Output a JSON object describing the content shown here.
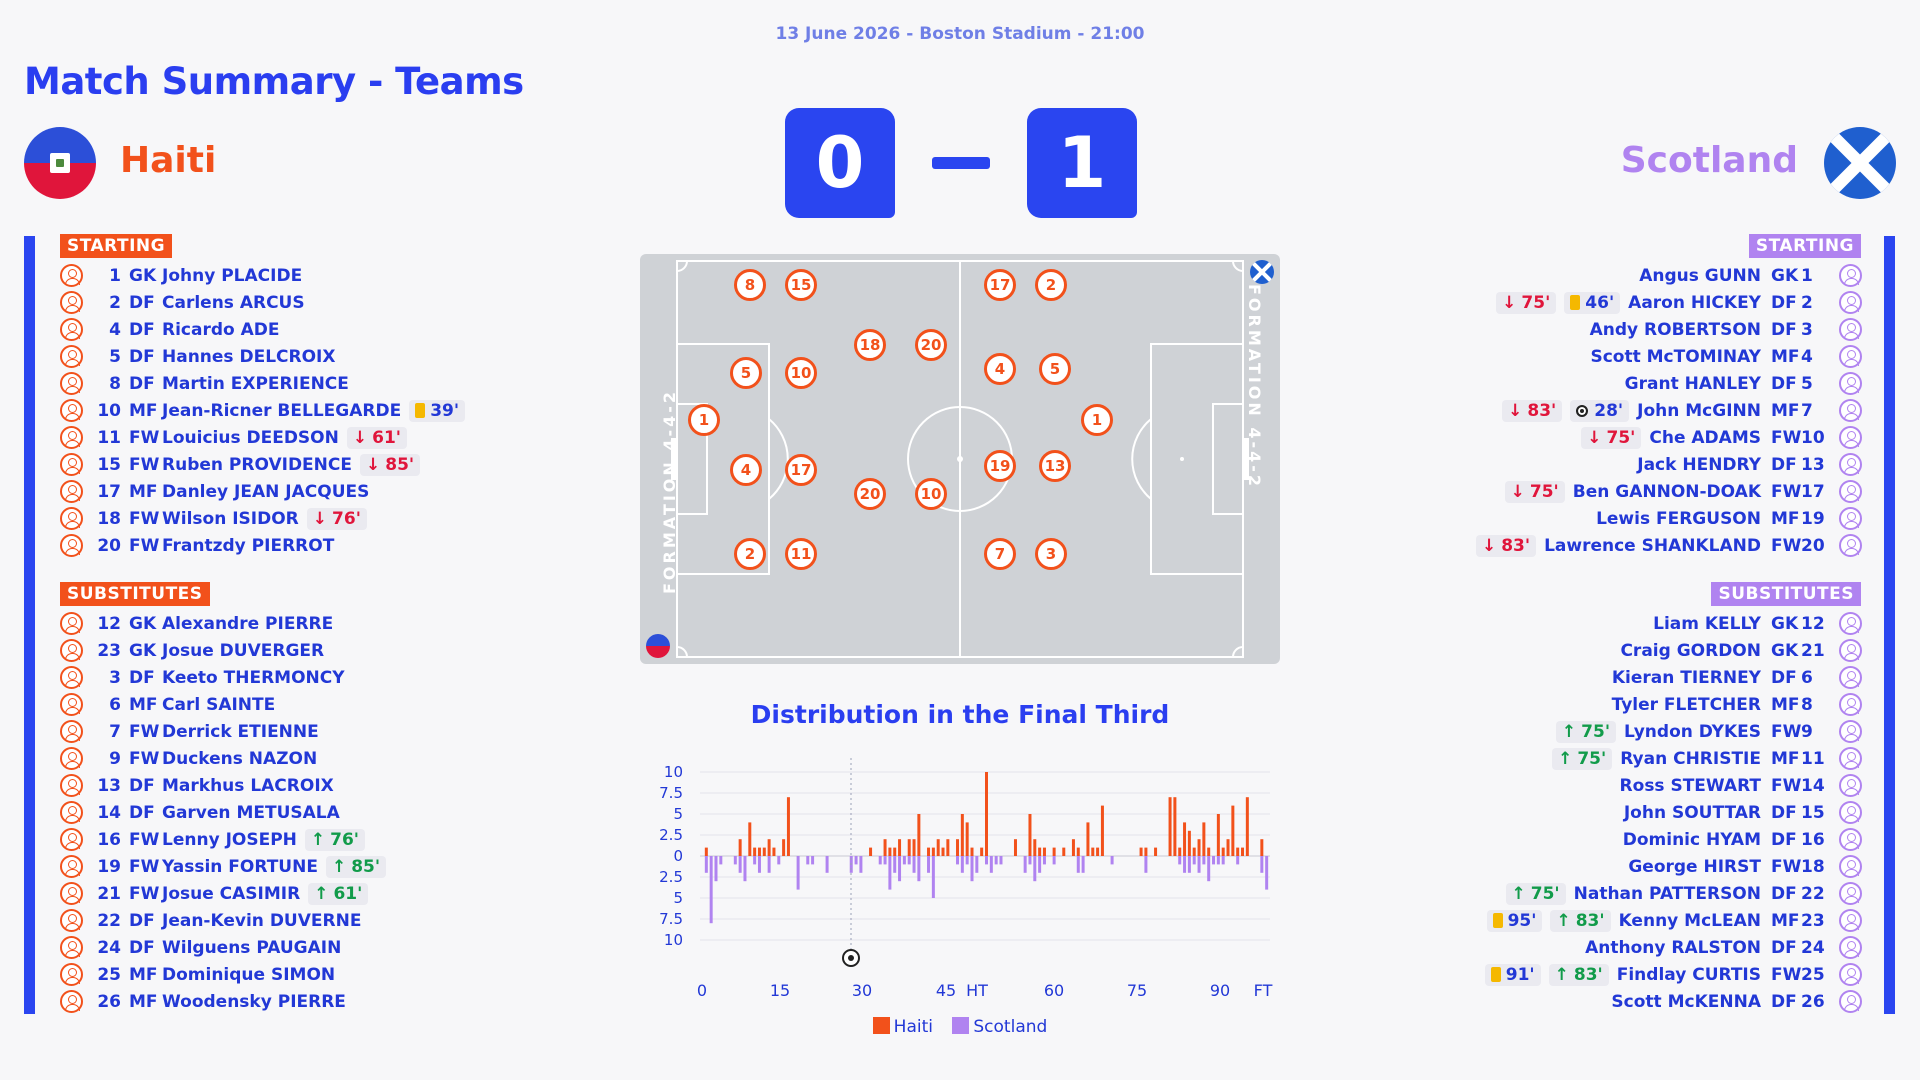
{
  "match_info": "13 June 2026 - Boston Stadium - 21:00",
  "title": "Match Summary - Teams",
  "home": {
    "name": "Haiti",
    "score": "0",
    "color": "#f2511b",
    "starting_label": "STARTING",
    "subs_label": "SUBSTITUTES",
    "formation": "FORMATION 4-4-2",
    "starting": [
      {
        "num": "1",
        "pos": "GK",
        "name": "Johny PLACIDE",
        "events": []
      },
      {
        "num": "2",
        "pos": "DF",
        "name": "Carlens ARCUS",
        "events": []
      },
      {
        "num": "4",
        "pos": "DF",
        "name": "Ricardo ADE",
        "events": []
      },
      {
        "num": "5",
        "pos": "DF",
        "name": "Hannes DELCROIX",
        "events": []
      },
      {
        "num": "8",
        "pos": "DF",
        "name": "Martin EXPERIENCE",
        "events": []
      },
      {
        "num": "10",
        "pos": "MF",
        "name": "Jean-Ricner BELLEGARDE",
        "events": [
          {
            "type": "card",
            "min": "39'"
          }
        ]
      },
      {
        "num": "11",
        "pos": "FW",
        "name": "Louicius DEEDSON",
        "events": [
          {
            "type": "off",
            "min": "61'"
          }
        ]
      },
      {
        "num": "15",
        "pos": "FW",
        "name": "Ruben PROVIDENCE",
        "events": [
          {
            "type": "off",
            "min": "85'"
          }
        ]
      },
      {
        "num": "17",
        "pos": "MF",
        "name": "Danley JEAN JACQUES",
        "events": []
      },
      {
        "num": "18",
        "pos": "FW",
        "name": "Wilson ISIDOR",
        "events": [
          {
            "type": "off",
            "min": "76'"
          }
        ]
      },
      {
        "num": "20",
        "pos": "FW",
        "name": "Frantzdy PIERROT",
        "events": []
      }
    ],
    "subs": [
      {
        "num": "12",
        "pos": "GK",
        "name": "Alexandre PIERRE",
        "events": []
      },
      {
        "num": "23",
        "pos": "GK",
        "name": "Josue DUVERGER",
        "events": []
      },
      {
        "num": "3",
        "pos": "DF",
        "name": "Keeto THERMONCY",
        "events": []
      },
      {
        "num": "6",
        "pos": "MF",
        "name": "Carl SAINTE",
        "events": []
      },
      {
        "num": "7",
        "pos": "FW",
        "name": "Derrick ETIENNE",
        "events": []
      },
      {
        "num": "9",
        "pos": "FW",
        "name": "Duckens NAZON",
        "events": []
      },
      {
        "num": "13",
        "pos": "DF",
        "name": "Markhus LACROIX",
        "events": []
      },
      {
        "num": "14",
        "pos": "DF",
        "name": "Garven METUSALA",
        "events": []
      },
      {
        "num": "16",
        "pos": "FW",
        "name": "Lenny JOSEPH",
        "events": [
          {
            "type": "on",
            "min": "76'"
          }
        ]
      },
      {
        "num": "19",
        "pos": "FW",
        "name": "Yassin FORTUNE",
        "events": [
          {
            "type": "on",
            "min": "85'"
          }
        ]
      },
      {
        "num": "21",
        "pos": "FW",
        "name": "Josue CASIMIR",
        "events": [
          {
            "type": "on",
            "min": "61'"
          }
        ]
      },
      {
        "num": "22",
        "pos": "DF",
        "name": "Jean-Kevin DUVERNE",
        "events": []
      },
      {
        "num": "24",
        "pos": "DF",
        "name": "Wilguens PAUGAIN",
        "events": []
      },
      {
        "num": "25",
        "pos": "MF",
        "name": "Dominique SIMON",
        "events": []
      },
      {
        "num": "26",
        "pos": "MF",
        "name": "Woodensky PIERRE",
        "events": []
      }
    ]
  },
  "away": {
    "name": "Scotland",
    "score": "1",
    "color": "#b083f0",
    "starting_label": "STARTING",
    "subs_label": "SUBSTITUTES",
    "formation": "FORMATION 4-4-2",
    "starting": [
      {
        "num": "1",
        "pos": "GK",
        "name": "Angus GUNN",
        "events": []
      },
      {
        "num": "2",
        "pos": "DF",
        "name": "Aaron HICKEY",
        "events": [
          {
            "type": "off",
            "min": "75'"
          },
          {
            "type": "card",
            "min": "46'"
          }
        ]
      },
      {
        "num": "3",
        "pos": "DF",
        "name": "Andy ROBERTSON",
        "events": []
      },
      {
        "num": "4",
        "pos": "MF",
        "name": "Scott McTOMINAY",
        "events": []
      },
      {
        "num": "5",
        "pos": "DF",
        "name": "Grant HANLEY",
        "events": []
      },
      {
        "num": "7",
        "pos": "MF",
        "name": "John McGINN",
        "events": [
          {
            "type": "off",
            "min": "83'"
          },
          {
            "type": "goal",
            "min": "28'"
          }
        ]
      },
      {
        "num": "10",
        "pos": "FW",
        "name": "Che ADAMS",
        "events": [
          {
            "type": "off",
            "min": "75'"
          }
        ]
      },
      {
        "num": "13",
        "pos": "DF",
        "name": "Jack HENDRY",
        "events": []
      },
      {
        "num": "17",
        "pos": "FW",
        "name": "Ben GANNON-DOAK",
        "events": [
          {
            "type": "off",
            "min": "75'"
          }
        ]
      },
      {
        "num": "19",
        "pos": "MF",
        "name": "Lewis FERGUSON",
        "events": []
      },
      {
        "num": "20",
        "pos": "FW",
        "name": "Lawrence SHANKLAND",
        "events": [
          {
            "type": "off",
            "min": "83'"
          }
        ]
      }
    ],
    "subs": [
      {
        "num": "12",
        "pos": "GK",
        "name": "Liam KELLY",
        "events": []
      },
      {
        "num": "21",
        "pos": "GK",
        "name": "Craig GORDON",
        "events": []
      },
      {
        "num": "6",
        "pos": "DF",
        "name": "Kieran TIERNEY",
        "events": []
      },
      {
        "num": "8",
        "pos": "MF",
        "name": "Tyler FLETCHER",
        "events": []
      },
      {
        "num": "9",
        "pos": "FW",
        "name": "Lyndon DYKES",
        "events": [
          {
            "type": "on",
            "min": "75'"
          }
        ]
      },
      {
        "num": "11",
        "pos": "MF",
        "name": "Ryan CHRISTIE",
        "events": [
          {
            "type": "on",
            "min": "75'"
          }
        ]
      },
      {
        "num": "14",
        "pos": "FW",
        "name": "Ross STEWART",
        "events": []
      },
      {
        "num": "15",
        "pos": "DF",
        "name": "John SOUTTAR",
        "events": []
      },
      {
        "num": "16",
        "pos": "DF",
        "name": "Dominic HYAM",
        "events": []
      },
      {
        "num": "18",
        "pos": "FW",
        "name": "George HIRST",
        "events": []
      },
      {
        "num": "22",
        "pos": "DF",
        "name": "Nathan PATTERSON",
        "events": [
          {
            "type": "on",
            "min": "75'"
          }
        ]
      },
      {
        "num": "23",
        "pos": "MF",
        "name": "Kenny McLEAN",
        "events": [
          {
            "type": "card",
            "min": "95'"
          },
          {
            "type": "on",
            "min": "83'"
          }
        ]
      },
      {
        "num": "24",
        "pos": "DF",
        "name": "Anthony RALSTON",
        "events": []
      },
      {
        "num": "25",
        "pos": "FW",
        "name": "Findlay CURTIS",
        "events": [
          {
            "type": "card",
            "min": "91'"
          },
          {
            "type": "on",
            "min": "83'"
          }
        ]
      },
      {
        "num": "26",
        "pos": "DF",
        "name": "Scott McKENNA",
        "events": []
      }
    ]
  },
  "pitch": {
    "home_players": [
      "8",
      "15",
      "5",
      "10",
      "18",
      "1",
      "20",
      "4",
      "17",
      "2",
      "11"
    ],
    "away_players": [
      "17",
      "2",
      "20",
      "4",
      "5",
      "1",
      "19",
      "13",
      "10",
      "7",
      "3"
    ]
  },
  "distribution": {
    "title": "Distribution in the Final Third",
    "chart_data": {
      "type": "bar",
      "title": "Distribution in the Final Third",
      "x_ticks": [
        "0",
        "15",
        "30",
        "45",
        "HT",
        "60",
        "75",
        "90",
        "FT"
      ],
      "y_ticks": [
        "10",
        "7.5",
        "5",
        "2.5",
        "0",
        "2.5",
        "5",
        "7.5",
        "10"
      ],
      "ylim": [
        -10,
        10
      ],
      "legend_position": "bottom",
      "goal_minute": 28,
      "series": [
        {
          "name": "Haiti",
          "color": "#f2511b",
          "values": [
            0,
            1,
            0,
            0,
            0,
            0,
            0,
            0,
            2,
            0,
            4,
            1,
            1,
            1,
            2,
            1,
            0,
            2,
            7,
            0,
            0,
            0,
            0,
            0,
            0,
            0,
            0,
            0,
            0,
            0,
            0,
            0,
            0,
            0,
            0,
            1,
            0,
            0,
            2,
            1,
            1,
            2,
            0,
            2,
            2,
            5,
            0,
            1,
            1,
            2,
            1,
            2,
            0,
            2,
            5,
            4,
            1,
            0,
            1,
            10,
            0,
            0,
            0,
            0,
            0,
            2,
            0,
            0,
            5,
            2,
            1,
            1,
            0,
            1,
            0,
            1,
            0,
            2,
            1,
            0,
            4,
            1,
            1,
            6,
            0,
            0,
            0,
            0,
            0,
            0,
            0,
            1,
            1,
            0,
            1,
            0,
            0,
            7,
            7,
            1,
            4,
            3,
            1,
            2,
            4,
            1,
            0,
            5,
            1,
            2,
            6,
            1,
            1,
            7,
            0,
            0,
            2,
            0
          ]
        },
        {
          "name": "Scotland",
          "color": "#b083f0",
          "values": [
            0,
            2,
            8,
            3,
            1,
            0,
            0,
            1,
            2,
            3,
            0,
            1,
            2,
            0,
            2,
            0,
            1,
            0,
            0,
            0,
            4,
            0,
            1,
            1,
            0,
            0,
            2,
            0,
            0,
            0,
            0,
            2,
            1,
            2,
            0,
            0,
            0,
            1,
            1,
            4,
            2,
            3,
            1,
            1,
            2,
            3,
            0,
            2,
            5,
            0,
            0,
            0,
            0,
            1,
            2,
            1,
            3,
            2,
            0,
            1,
            2,
            1,
            1,
            0,
            0,
            0,
            0,
            2,
            1,
            3,
            2,
            1,
            0,
            1,
            0,
            0,
            0,
            0,
            2,
            2,
            0,
            0,
            0,
            0,
            0,
            1,
            0,
            0,
            0,
            0,
            0,
            0,
            2,
            0,
            0,
            0,
            0,
            0,
            0,
            1,
            2,
            2,
            1,
            2,
            1,
            3,
            1,
            1,
            1,
            0,
            0,
            1,
            0,
            0,
            0,
            0,
            2,
            4
          ]
        }
      ]
    }
  }
}
